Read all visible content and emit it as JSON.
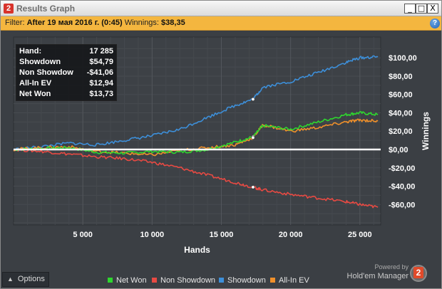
{
  "window": {
    "title": "Results Graph",
    "app_icon_label": "2",
    "controls": [
      "_",
      "□",
      "X"
    ]
  },
  "filter": {
    "prefix": "Filter:",
    "value": "After 19 мая 2016 г. (0:45)",
    "winnings_label": "Winnings:",
    "winnings_value": "$38,35",
    "help_label": "?"
  },
  "stats": [
    {
      "label": "Hand:",
      "value": "17 285"
    },
    {
      "label": "Showdown",
      "value": "$54,79"
    },
    {
      "label": "Non Showdow",
      "value": "-$41,06"
    },
    {
      "label": "All-In EV",
      "value": "$12,94"
    },
    {
      "label": "Net Won",
      "value": "$13,73"
    }
  ],
  "options_label": "Options",
  "brand": {
    "powered_by": "Powered by",
    "name": "Hold'em Manager",
    "badge": "2"
  },
  "colors": {
    "net_won": "#2ed62e",
    "non_showdown": "#e84a43",
    "showdown": "#3d8fd9",
    "all_in_ev": "#f0902a",
    "background": "#3b3f44",
    "filter_bar": "#f4b63f"
  },
  "chart_data": {
    "type": "line",
    "title": "",
    "xlabel": "Hands",
    "ylabel": "Winnings",
    "xlim": [
      0,
      26500
    ],
    "ylim": [
      -80,
      110
    ],
    "x_ticks": [
      5000,
      10000,
      15000,
      20000,
      25000
    ],
    "x_tick_labels": [
      "5 000",
      "10 000",
      "15 000",
      "20 000",
      "25 000"
    ],
    "y_ticks": [
      100,
      80,
      60,
      40,
      20,
      0,
      -20,
      -40,
      -60
    ],
    "y_tick_labels": [
      "$100,00",
      "$80,00",
      "$60,00",
      "$40,00",
      "$20,00",
      "$0,00",
      "-$20,00",
      "-$40,00",
      "-$60,00"
    ],
    "grid": true,
    "legend_position": "bottom",
    "x": [
      0,
      2000,
      4000,
      6000,
      8000,
      10000,
      12000,
      14000,
      16000,
      17285,
      18000,
      20000,
      22000,
      24000,
      25000,
      26300
    ],
    "series": [
      {
        "name": "Net Won",
        "color_key": "net_won",
        "values": [
          0,
          1,
          2,
          -3,
          -4,
          -2,
          -3,
          0,
          8,
          13.7,
          26,
          22,
          30,
          38,
          40,
          38
        ]
      },
      {
        "name": "Non Showdown",
        "color_key": "non_showdown",
        "values": [
          0,
          -2,
          -5,
          -8,
          -10,
          -14,
          -20,
          -28,
          -36,
          -41.1,
          -44,
          -49,
          -53,
          -57,
          -60,
          -63
        ]
      },
      {
        "name": "Showdown",
        "color_key": "showdown",
        "values": [
          0,
          3,
          7,
          5,
          10,
          15,
          22,
          35,
          48,
          54.8,
          68,
          74,
          84,
          95,
          100,
          101
        ]
      },
      {
        "name": "All-In EV",
        "color_key": "all_in_ev",
        "values": [
          0,
          2,
          3,
          -2,
          -4,
          -6,
          -1,
          2,
          5,
          12.9,
          27,
          20,
          24,
          30,
          32,
          31
        ]
      }
    ],
    "highlight_x": 17285
  }
}
